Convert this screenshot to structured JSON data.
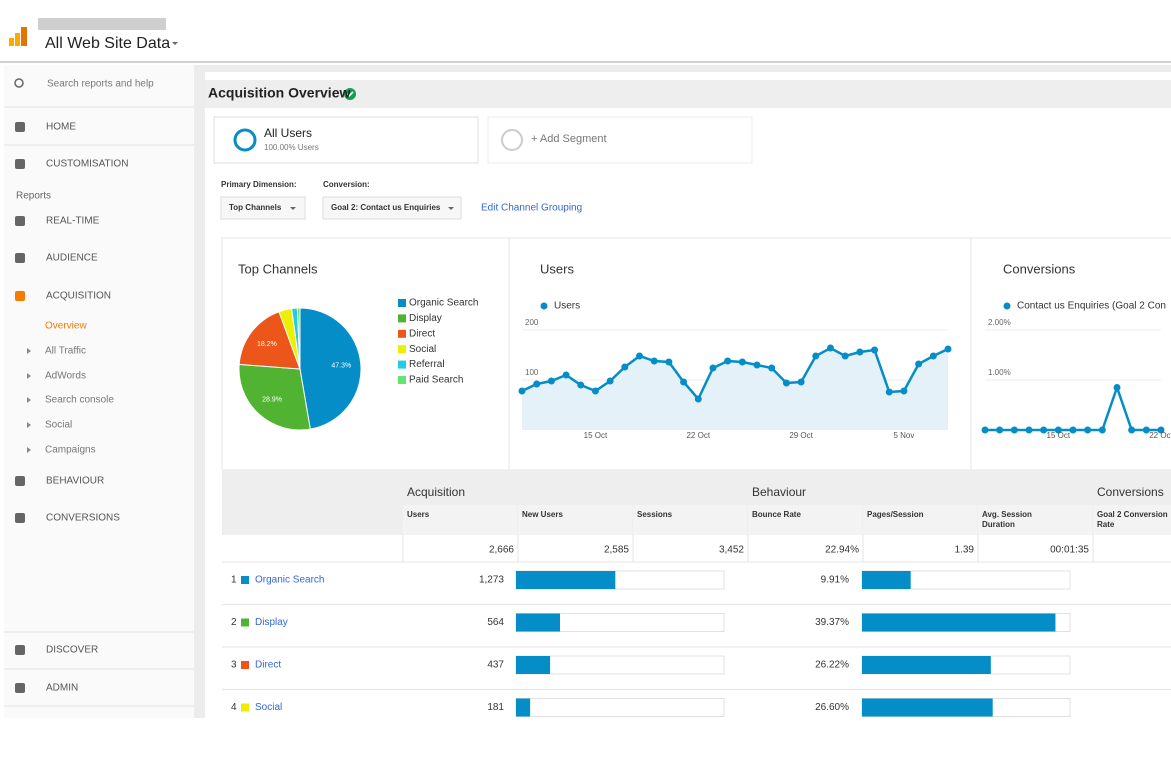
{
  "header": {
    "property": "All Web Site Data"
  },
  "sidebar": {
    "search": "Search reports and help",
    "top_items": [
      "HOME",
      "CUSTOMISATION"
    ],
    "section": "Reports",
    "items": [
      "REAL-TIME",
      "AUDIENCE",
      "ACQUISITION"
    ],
    "acquisition_items": [
      "Overview",
      "All Traffic",
      "AdWords",
      "Search console",
      "Social",
      "Campaigns"
    ],
    "more_items": [
      "BEHAVIOUR",
      "CONVERSIONS"
    ],
    "bottom_items": [
      "DISCOVER",
      "ADMIN"
    ]
  },
  "report": {
    "title": "Acquisition Overview",
    "segment": {
      "name": "All Users",
      "detail": "100.00% Users"
    },
    "add_segment": "+ Add Segment",
    "primary_dimension_label": "Primary Dimension:",
    "primary_dimension": "Top Channels",
    "conversion_label": "Conversion:",
    "conversion": "Goal 2: Contact us Enquiries",
    "edit_link": "Edit Channel Grouping"
  },
  "chart_data": [
    {
      "type": "pie",
      "title": "Top Channels",
      "categories": [
        "Organic Search",
        "Display",
        "Direct",
        "Social",
        "Referral",
        "Paid Search"
      ],
      "values": [
        47.3,
        28.9,
        18.2,
        3.4,
        1.5,
        0.7
      ],
      "value_labels": [
        "47.3%",
        "28.9%",
        "18.2%",
        null,
        null,
        null
      ],
      "colors": [
        "#058dc7",
        "#50b432",
        "#ed561b",
        "#edef00",
        "#24cbe5",
        "#64e572"
      ]
    },
    {
      "type": "line",
      "title": "Users",
      "categories": [
        null,
        null,
        null,
        null,
        null,
        "15 Oct",
        null,
        null,
        null,
        null,
        null,
        null,
        "22 Oct",
        null,
        null,
        null,
        null,
        null,
        null,
        "29 Oct",
        null,
        null,
        null,
        null,
        null,
        null,
        "5 Nov",
        null,
        null,
        null
      ],
      "series": [
        {
          "name": "Users",
          "color": "#058dc7",
          "values": [
            78,
            92,
            98,
            110,
            90,
            78,
            98,
            126,
            148,
            138,
            136,
            96,
            62,
            124,
            138,
            136,
            130,
            124,
            94,
            96,
            148,
            164,
            148,
            156,
            160,
            76,
            78,
            132,
            148,
            162
          ]
        }
      ],
      "ylim": [
        0,
        220
      ],
      "yticks": [
        100,
        200
      ],
      "area": true
    },
    {
      "type": "line",
      "title": "Conversions",
      "categories": [
        null,
        null,
        null,
        null,
        null,
        "15 Oct",
        null,
        null,
        null,
        null,
        null,
        null,
        "22 Oct"
      ],
      "series": [
        {
          "name": "Contact us Enquiries (Goal 2 Con",
          "color": "#058dc7",
          "values": [
            0,
            0,
            0,
            0,
            0,
            0,
            0,
            0,
            0,
            0.85,
            0,
            0,
            0
          ]
        }
      ],
      "ylim": [
        0,
        2.2
      ],
      "yticks": [
        {
          "value": 1,
          "label": "1.00%"
        },
        {
          "value": 2,
          "label": "2.00%"
        }
      ],
      "area": false
    }
  ],
  "table": {
    "groups": [
      "Acquisition",
      "Behaviour",
      "Conversions"
    ],
    "columns": [
      "Users",
      "New Users",
      "Sessions",
      "Bounce Rate",
      "Pages/Session",
      "Avg. Session Duration",
      "Goal 2 Conversion Rate"
    ],
    "totals": {
      "users": {
        "value": 2666,
        "label": "2,666"
      },
      "new_users": "2,585",
      "sessions": "3,452",
      "bounce_rate": "22.94%",
      "pages_session": "1.39",
      "avg_session_duration": "00:01:35"
    },
    "rows": [
      {
        "rank": 1,
        "channel": "Organic Search",
        "color": "#058dc7",
        "users": {
          "value": 1273,
          "label": "1,273"
        },
        "bounce_rate": {
          "value": 9.91,
          "label": "9.91%"
        }
      },
      {
        "rank": 2,
        "channel": "Display",
        "color": "#50b432",
        "users": {
          "value": 564,
          "label": "564"
        },
        "bounce_rate": {
          "value": 39.37,
          "label": "39.37%"
        }
      },
      {
        "rank": 3,
        "channel": "Direct",
        "color": "#ed561b",
        "users": {
          "value": 437,
          "label": "437"
        },
        "bounce_rate": {
          "value": 26.22,
          "label": "26.22%"
        }
      },
      {
        "rank": 4,
        "channel": "Social",
        "color": "#edef00",
        "users": {
          "value": 181,
          "label": "181"
        },
        "bounce_rate": {
          "value": 26.6,
          "label": "26.60%"
        }
      }
    ]
  }
}
